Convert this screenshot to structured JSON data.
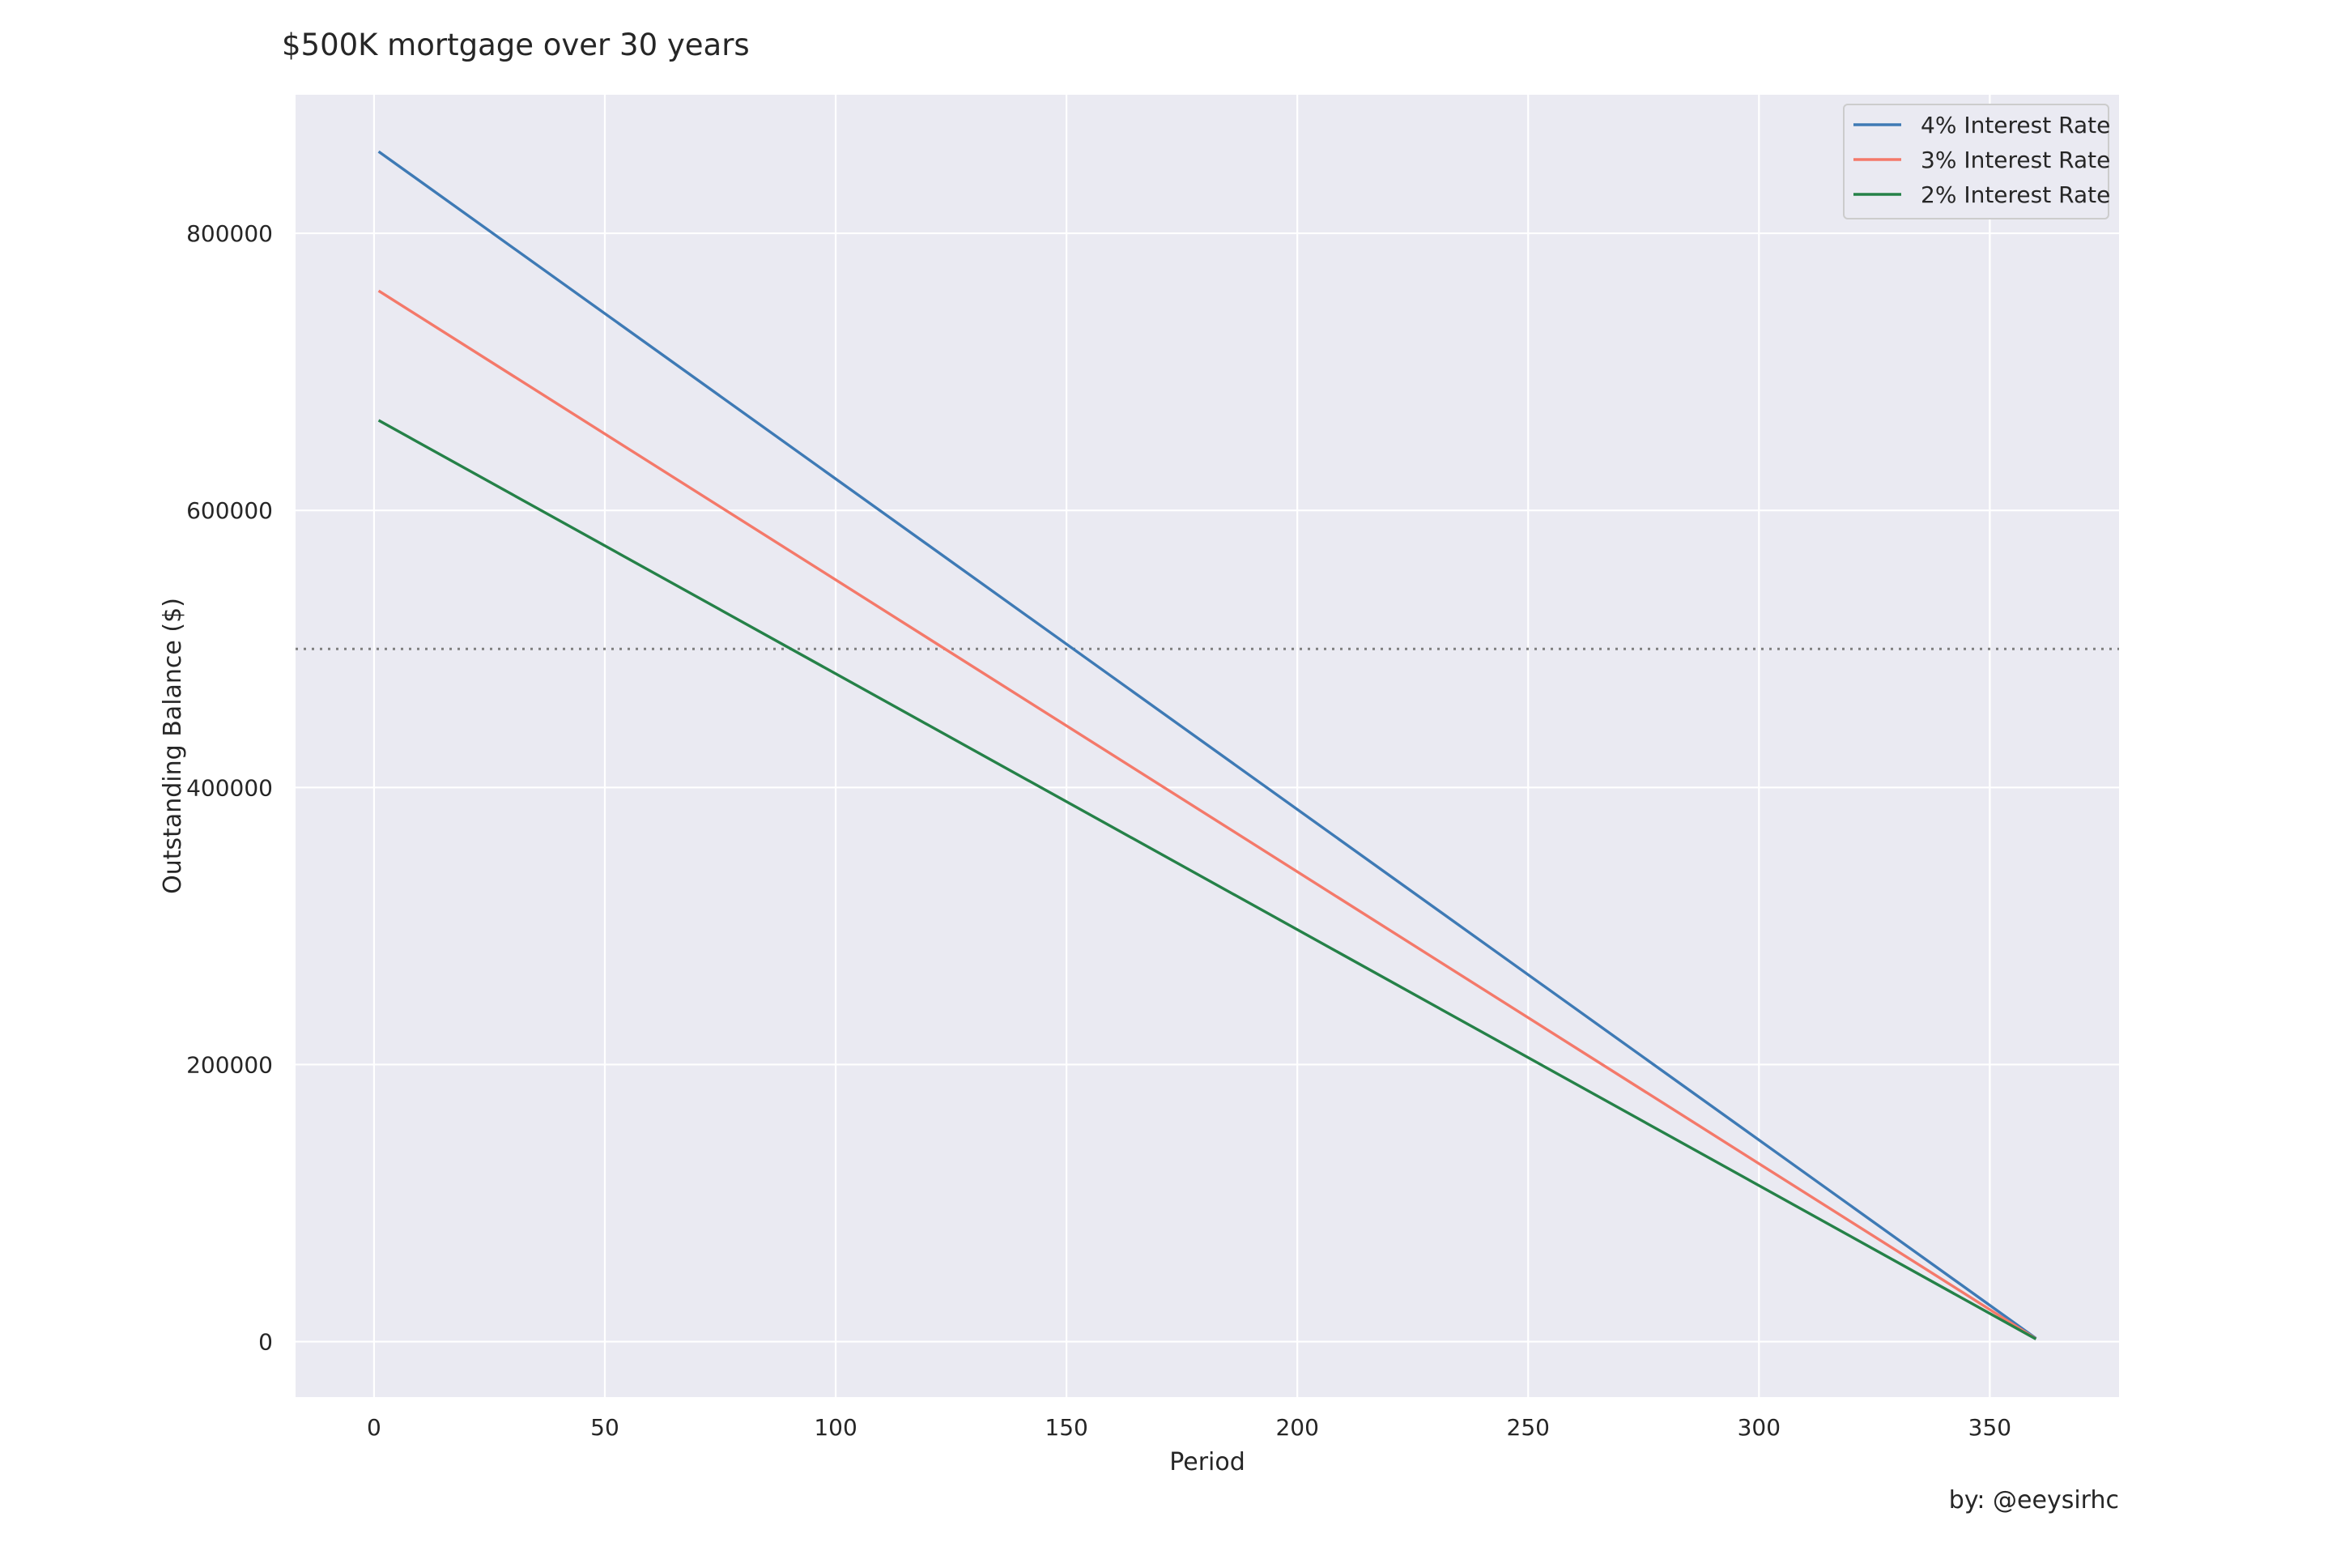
{
  "chart_data": {
    "type": "line",
    "title": "$500K mortgage over 30 years",
    "credit": "by: @eeysirhc",
    "xlabel": "Period",
    "ylabel": "Outstanding Balance ($)",
    "xlim": [
      -17,
      378
    ],
    "ylim": [
      -40000,
      900000
    ],
    "xticks": [
      0,
      50,
      100,
      150,
      200,
      250,
      300,
      350
    ],
    "yticks": [
      0,
      200000,
      400000,
      600000,
      800000
    ],
    "grid": true,
    "background_color": "#eaeaf2",
    "legend_position": "top-right",
    "reference_line": {
      "y": 500000,
      "style": "dotted",
      "color": "#7f7f7f"
    },
    "series": [
      {
        "name": "4% Interest Rate",
        "color": "#3e7ab5",
        "x": [
          1,
          360
        ],
        "y": [
          859000,
          2400
        ]
      },
      {
        "name": "3% Interest Rate",
        "color": "#f4796a",
        "x": [
          1,
          360
        ],
        "y": [
          758500,
          2100
        ]
      },
      {
        "name": "2% Interest Rate",
        "color": "#258148",
        "x": [
          1,
          360
        ],
        "y": [
          665000,
          1850
        ]
      }
    ]
  }
}
